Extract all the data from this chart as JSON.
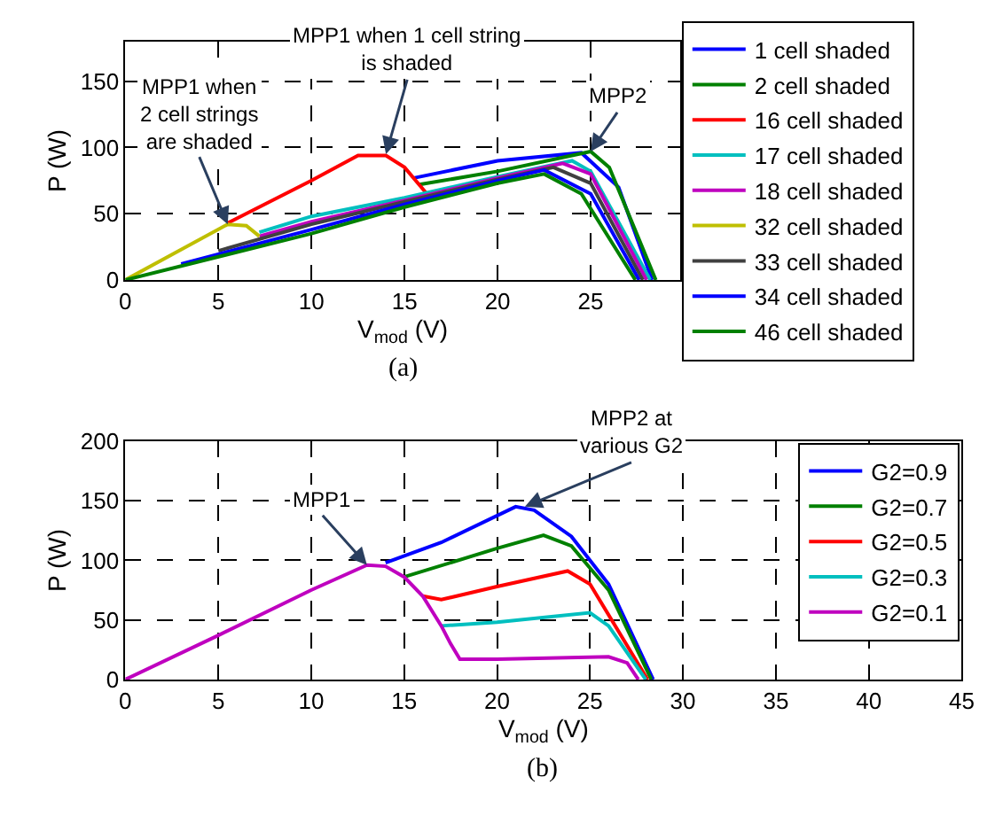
{
  "chart_data": [
    {
      "type": "line",
      "title": "(a)",
      "xlabel": "V$_{mod}$ (V)",
      "ylabel": "P (W)",
      "xlim": [
        0,
        29.8
      ],
      "xticks": [
        0,
        5,
        10,
        15,
        20,
        25
      ],
      "ylim": [
        0,
        180
      ],
      "yticks": [
        0,
        50,
        100,
        150
      ],
      "grid": true,
      "legend": "right",
      "line_style": "solid",
      "annotations": [
        {
          "text": "MPP1 when\n2 cell strings\nare shaded",
          "x": 5.5,
          "y": 42
        },
        {
          "text": "MPP1 when 1 cell string\nis shaded",
          "x": 14,
          "y": 95
        },
        {
          "text": "MPP2",
          "x": 25,
          "y": 97
        }
      ],
      "series": [
        {
          "name": "1 cell shaded",
          "color": "#0000ff",
          "x": [
            15.5,
            20,
            24.5,
            26.5,
            28.3
          ],
          "values": [
            77,
            90,
            96,
            70,
            0
          ]
        },
        {
          "name": "2 cell shaded",
          "color": "#008000",
          "x": [
            15.8,
            20,
            25,
            26,
            28.5
          ],
          "values": [
            72,
            82,
            97,
            85,
            0
          ]
        },
        {
          "name": "16 cell shaded",
          "color": "#ff0000",
          "x": [
            5.5,
            10,
            12.5,
            14,
            15,
            16.2
          ],
          "values": [
            43,
            75,
            94,
            94,
            85,
            65
          ]
        },
        {
          "name": "17 cell shaded",
          "color": "#00bfbf",
          "x": [
            7.2,
            10,
            15,
            20,
            24,
            25,
            28.2
          ],
          "values": [
            36,
            48,
            62,
            78,
            90,
            82,
            0
          ]
        },
        {
          "name": "18 cell shaded",
          "color": "#bf00bf",
          "x": [
            7.2,
            10,
            15,
            20,
            23.5,
            25,
            28
          ],
          "values": [
            33,
            44,
            60,
            77,
            88,
            80,
            0
          ]
        },
        {
          "name": "32 cell shaded",
          "color": "#bfbf00",
          "x": [
            0,
            5.5,
            6.5,
            7.2
          ],
          "values": [
            0,
            42,
            41,
            33
          ]
        },
        {
          "name": "33 cell shaded",
          "color": "#404040",
          "x": [
            5,
            10,
            15,
            20,
            23,
            25,
            27.8
          ],
          "values": [
            22,
            42,
            59,
            76,
            85,
            73,
            0
          ]
        },
        {
          "name": "34 cell shaded",
          "color": "#0000ff",
          "x": [
            3,
            10,
            15,
            20,
            22.5,
            25,
            27.6
          ],
          "values": [
            12,
            38,
            57,
            75,
            83,
            65,
            0
          ]
        },
        {
          "name": "46 cell shaded",
          "color": "#008000",
          "x": [
            0,
            10,
            15,
            20,
            22.5,
            24.5,
            27.4
          ],
          "values": [
            0,
            35,
            55,
            73,
            80,
            65,
            0
          ]
        }
      ]
    },
    {
      "type": "line",
      "title": "(b)",
      "xlabel": "V$_{mod}$ (V)",
      "ylabel": "P (W)",
      "xlim": [
        0,
        45
      ],
      "xticks": [
        0,
        5,
        10,
        15,
        20,
        25,
        30,
        35,
        40,
        45
      ],
      "ylim": [
        0,
        200
      ],
      "yticks": [
        0,
        50,
        100,
        150,
        200
      ],
      "grid": true,
      "legend": "top right",
      "line_style": "solid",
      "annotations": [
        {
          "text": "MPP1",
          "x": 13,
          "y": 96
        },
        {
          "text": "MPP2 at\nvarious G2",
          "x": 21.5,
          "y": 145
        }
      ],
      "series": [
        {
          "name": "G2=0.9",
          "color": "#0000ff",
          "x": [
            14,
            17,
            21,
            22,
            24,
            26,
            28.4
          ],
          "values": [
            98,
            115,
            145,
            142,
            120,
            80,
            0
          ]
        },
        {
          "name": "G2=0.7",
          "color": "#008000",
          "x": [
            15,
            20,
            22.5,
            24,
            26,
            28.3
          ],
          "values": [
            86,
            110,
            121,
            112,
            75,
            0
          ]
        },
        {
          "name": "G2=0.5",
          "color": "#ff0000",
          "x": [
            16,
            17,
            20,
            23.8,
            25,
            28.1
          ],
          "values": [
            70,
            67,
            78,
            91,
            80,
            0
          ]
        },
        {
          "name": "G2=0.3",
          "color": "#00bfbf",
          "x": [
            17,
            20,
            25,
            26,
            28
          ],
          "values": [
            45,
            48,
            56,
            45,
            0
          ]
        },
        {
          "name": "G2=0.1",
          "color": "#bf00bf",
          "x": [
            0,
            5,
            10,
            13,
            14,
            15,
            16,
            17,
            17.5,
            18,
            20,
            26,
            27,
            27.6
          ],
          "values": [
            0,
            37,
            75,
            96,
            95,
            86,
            70,
            45,
            30,
            17,
            17,
            19,
            14,
            0
          ]
        }
      ]
    }
  ]
}
